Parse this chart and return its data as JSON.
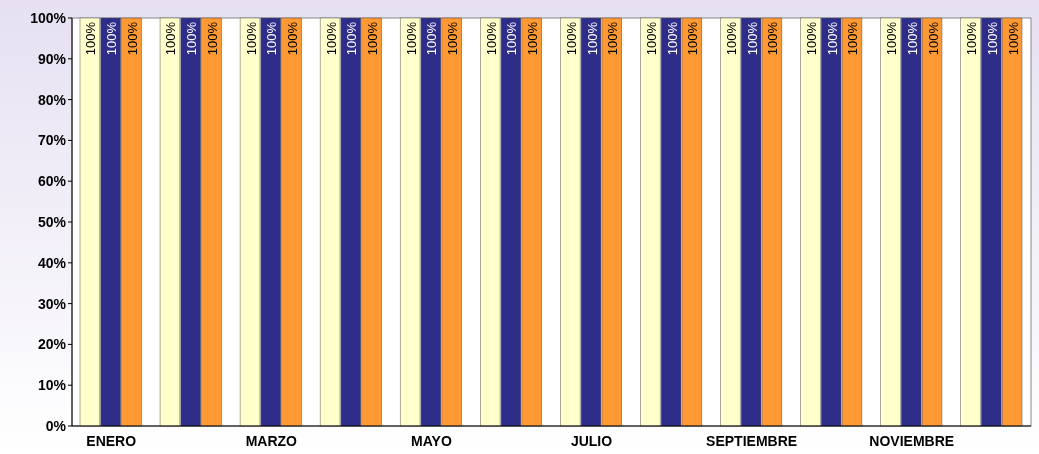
{
  "chart_data": {
    "type": "bar",
    "categories": [
      "ENERO",
      null,
      "MARZO",
      null,
      "MAYO",
      null,
      "JULIO",
      null,
      "SEPTIEMBRE",
      null,
      "NOVIEMBRE",
      null
    ],
    "series": [
      {
        "color": "#ffffcc",
        "values": [
          100,
          100,
          100,
          100,
          100,
          100,
          100,
          100,
          100,
          100,
          100,
          100
        ],
        "value_labels": [
          "100%",
          "100%",
          "100%",
          "100%",
          "100%",
          "100%",
          "100%",
          "100%",
          "100%",
          "100%",
          "100%",
          "100%"
        ]
      },
      {
        "color": "#2e2e8a",
        "values": [
          100,
          100,
          100,
          100,
          100,
          100,
          100,
          100,
          100,
          100,
          100,
          100
        ],
        "value_labels": [
          "100%",
          "100%",
          "100%",
          "100%",
          "100%",
          "100%",
          "100%",
          "100%",
          "100%",
          "100%",
          "100%",
          "100%"
        ]
      },
      {
        "color": "#ff9933",
        "values": [
          100,
          100,
          100,
          100,
          100,
          100,
          100,
          100,
          100,
          100,
          100,
          100
        ],
        "value_labels": [
          "100%",
          "100%",
          "100%",
          "100%",
          "100%",
          "100%",
          "100%",
          "100%",
          "100%",
          "100%",
          "100%",
          "100%"
        ]
      }
    ],
    "ylim": [
      0,
      100
    ],
    "yticks": [
      {
        "value": 0,
        "label": "0%"
      },
      {
        "value": 10,
        "label": "10%"
      },
      {
        "value": 20,
        "label": "20%"
      },
      {
        "value": 30,
        "label": "30%"
      },
      {
        "value": 40,
        "label": "40%"
      },
      {
        "value": 50,
        "label": "50%"
      },
      {
        "value": 60,
        "label": "60%"
      },
      {
        "value": 70,
        "label": "70%"
      },
      {
        "value": 80,
        "label": "80%"
      },
      {
        "value": 90,
        "label": "90%"
      },
      {
        "value": 100,
        "label": "100%"
      }
    ],
    "grid": false
  }
}
